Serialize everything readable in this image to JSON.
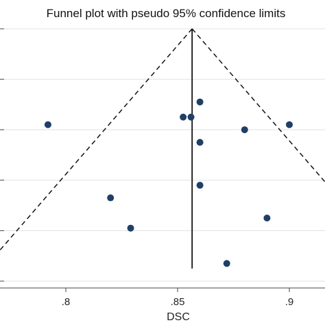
{
  "chart_data": {
    "type": "scatter",
    "title": "Funnel plot with pseudo 95% confidence limits",
    "xlabel": "DSC",
    "ylabel": "",
    "xlim": [
      0.7,
      0.915
    ],
    "ylim": [
      0,
      0.5
    ],
    "y_inverted": true,
    "x_ticks": [
      0.8,
      0.85,
      0.9
    ],
    "x_tick_labels": [
      ".8",
      ".85",
      ".9"
    ],
    "y_ticks": [
      0,
      0.1,
      0.2,
      0.3,
      0.4,
      0.5
    ],
    "y_tick_labels": [
      "",
      "",
      "",
      "",
      "",
      ""
    ],
    "grid": "horizontal",
    "legend": "none",
    "reference_line": {
      "x": 0.8565,
      "style": "solid"
    },
    "confidence_limits": {
      "apex": [
        0.8565,
        0.0
      ],
      "slope_x_per_y": 0.196,
      "style": "dashed"
    },
    "marker_color": "#1f3f66",
    "series": [
      {
        "points": [
          {
            "x": 0.792,
            "y": 0.19
          },
          {
            "x": 0.8525,
            "y": 0.175
          },
          {
            "x": 0.856,
            "y": 0.175
          },
          {
            "x": 0.86,
            "y": 0.145
          },
          {
            "x": 0.86,
            "y": 0.225
          },
          {
            "x": 0.88,
            "y": 0.2
          },
          {
            "x": 0.9,
            "y": 0.19
          },
          {
            "x": 0.86,
            "y": 0.31
          },
          {
            "x": 0.82,
            "y": 0.335
          },
          {
            "x": 0.89,
            "y": 0.375
          },
          {
            "x": 0.829,
            "y": 0.395
          },
          {
            "x": 0.872,
            "y": 0.465
          }
        ]
      }
    ]
  }
}
